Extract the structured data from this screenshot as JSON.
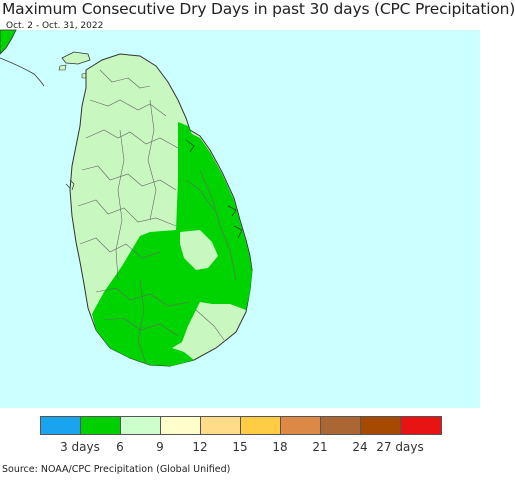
{
  "title": "Maximum Consecutive Dry Days in past 30 days (CPC Precipitation)",
  "subtitle": "Oct. 2 - Oct. 31, 2022",
  "source": "Source: NOAA/CPC Precipitation (Global Unified)",
  "colors": {
    "ocean": "#ccffff",
    "land_6_9": "#c8f7c0",
    "land_3_6": "#00d400",
    "border": "#333333"
  },
  "legend": {
    "colors": [
      "#1aa3ee",
      "#00d000",
      "#ccffcc",
      "#ffffcc",
      "#ffdd88",
      "#ffcc44",
      "#dd8844",
      "#aa6633",
      "#a54a00",
      "#e81414"
    ],
    "labels": [
      "3 days",
      "6",
      "9",
      "12",
      "15",
      "18",
      "21",
      "24",
      "27 days"
    ]
  }
}
